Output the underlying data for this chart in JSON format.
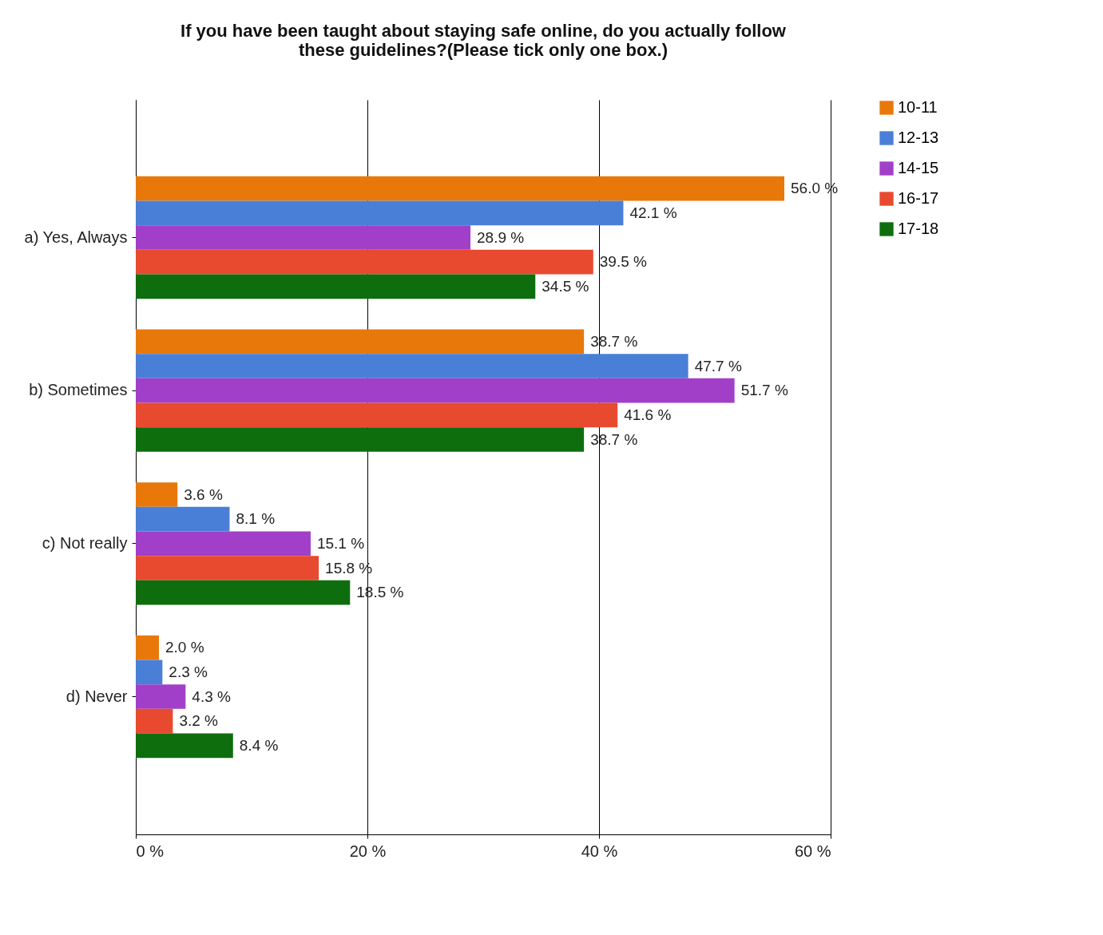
{
  "chart_data": {
    "type": "bar",
    "orientation": "horizontal",
    "title": "If you have been taught about staying safe online, do you actually follow these guidelines?(Please tick only one box.)",
    "categories": [
      "a) Yes, Always",
      "b) Sometimes",
      "c) Not really",
      "d) Never"
    ],
    "series": [
      {
        "name": "10-11",
        "color": "#e8780a",
        "values": [
          56.0,
          38.7,
          3.6,
          2.0
        ],
        "value_labels": [
          "56.0 %",
          "38.7 %",
          "3.6 %",
          "2.0 %"
        ]
      },
      {
        "name": "12-13",
        "color": "#4a7fd8",
        "values": [
          42.1,
          47.7,
          8.1,
          2.3
        ],
        "value_labels": [
          "42.1 %",
          "47.7 %",
          "8.1 %",
          "2.3 %"
        ]
      },
      {
        "name": "14-15",
        "color": "#a23fc8",
        "values": [
          28.9,
          51.7,
          15.1,
          4.3
        ],
        "value_labels": [
          "28.9 %",
          "51.7 %",
          "15.1 %",
          "4.3 %"
        ]
      },
      {
        "name": "16-17",
        "color": "#e84a30",
        "values": [
          39.5,
          41.6,
          15.8,
          3.2
        ],
        "value_labels": [
          "39.5 %",
          "41.6 %",
          "15.8 %",
          "3.2 %"
        ]
      },
      {
        "name": "17-18",
        "color": "#0e6e0e",
        "values": [
          34.5,
          38.7,
          18.5,
          8.4
        ],
        "value_labels": [
          "34.5 %",
          "38.7 %",
          "18.5 %",
          "8.4 %"
        ]
      }
    ],
    "xlim": [
      0,
      60
    ],
    "xticks": [
      {
        "value": 0,
        "label": "0 %"
      },
      {
        "value": 20,
        "label": "20 %"
      },
      {
        "value": 40,
        "label": "40 %"
      },
      {
        "value": 60,
        "label": "60 %"
      }
    ],
    "grid": "x",
    "legend": "right"
  }
}
